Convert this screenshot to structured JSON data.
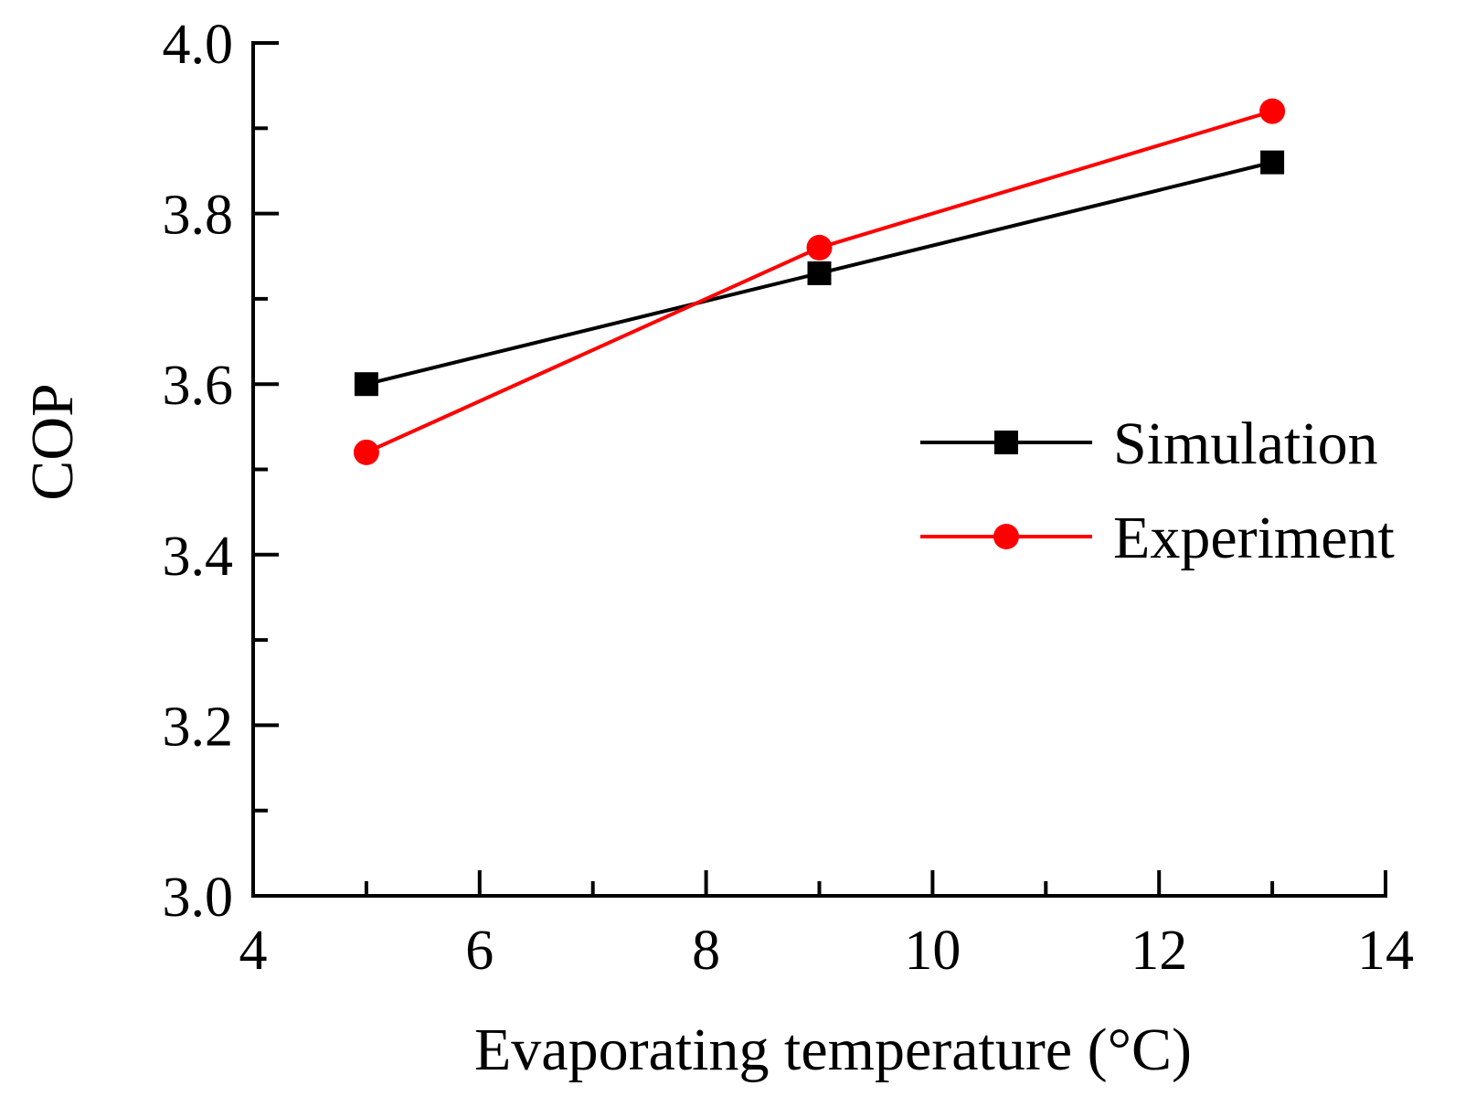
{
  "chart_data": {
    "type": "line",
    "title": "",
    "xlabel": "Evaporating temperature (°C)",
    "ylabel": "COP",
    "xlim": [
      4,
      14
    ],
    "ylim": [
      3.0,
      4.0
    ],
    "x_ticks": [
      "4",
      "6",
      "8",
      "10",
      "12",
      "14"
    ],
    "y_ticks": [
      "3.0",
      "3.2",
      "3.4",
      "3.6",
      "3.8",
      "4.0"
    ],
    "x_tick_values": [
      4,
      6,
      8,
      10,
      12,
      14
    ],
    "y_tick_values": [
      3.0,
      3.2,
      3.4,
      3.6,
      3.8,
      4.0
    ],
    "x_minor_tick_values": [
      5,
      7,
      9,
      11,
      13
    ],
    "y_minor_tick_values": [
      3.1,
      3.3,
      3.5,
      3.7,
      3.9
    ],
    "grid": false,
    "legend_position": "center-right",
    "series": [
      {
        "name": "Simulation",
        "marker": "square",
        "color": "#000000",
        "x": [
          5,
          9,
          13
        ],
        "y": [
          3.6,
          3.73,
          3.86
        ]
      },
      {
        "name": "Experiment",
        "marker": "circle",
        "color": "#ff0000",
        "x": [
          5,
          9,
          13
        ],
        "y": [
          3.52,
          3.76,
          3.92
        ]
      }
    ]
  }
}
